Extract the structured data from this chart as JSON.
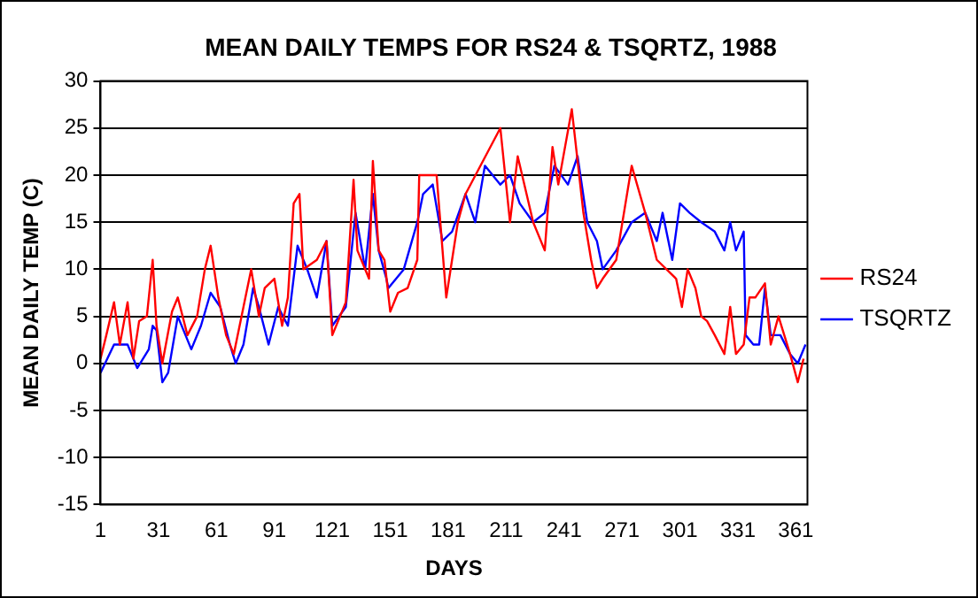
{
  "chart_data": {
    "type": "line",
    "title": "MEAN DAILY TEMPS FOR RS24 & TSQRTZ, 1988",
    "xlabel": "DAYS",
    "ylabel": "MEAN DAILY TEMP (C)",
    "xlim": [
      1,
      367
    ],
    "xticks": [
      1,
      31,
      61,
      91,
      121,
      151,
      181,
      211,
      241,
      271,
      301,
      331,
      361
    ],
    "ylim": [
      -15,
      30
    ],
    "yticks": [
      -15,
      -10,
      -5,
      0,
      5,
      10,
      15,
      20,
      25,
      30
    ],
    "grid": "y",
    "legend": "right",
    "marker": "none",
    "line_style": "solid",
    "series": [
      {
        "name": "RS24",
        "color": "#ff0000",
        "x": [
          1,
          4,
          8,
          11,
          15,
          18,
          21,
          25,
          28,
          30,
          33,
          38,
          41,
          46,
          51,
          55,
          58,
          62,
          66,
          70,
          75,
          79,
          83,
          86,
          91,
          95,
          98,
          101,
          104,
          106,
          113,
          118,
          121,
          128,
          132,
          134,
          140,
          142,
          145,
          148,
          151,
          155,
          160,
          165,
          166,
          175,
          180,
          186,
          190,
          208,
          213,
          217,
          225,
          231,
          235,
          238,
          245,
          251,
          255,
          258,
          261,
          268,
          276,
          283,
          289,
          299,
          302,
          305,
          309,
          312,
          315,
          319,
          324,
          327,
          330,
          334,
          337,
          340,
          345,
          348,
          352,
          358,
          362,
          365
        ],
        "values": [
          0.5,
          3,
          6.5,
          2,
          6.5,
          0.5,
          4.5,
          5,
          11,
          4,
          0,
          5.5,
          7,
          3,
          5,
          10,
          12.5,
          7,
          3,
          1,
          6,
          10,
          5,
          8,
          9,
          4,
          7,
          17,
          18,
          10,
          11,
          13,
          3,
          6.5,
          19.5,
          12,
          9,
          21.5,
          12,
          11,
          5.5,
          7.5,
          8,
          11,
          20,
          20,
          7,
          15,
          18,
          25,
          15,
          22,
          15,
          12,
          23,
          19,
          27,
          16,
          11,
          8,
          9,
          11,
          21,
          16,
          11,
          9,
          6,
          10,
          8,
          5,
          4.5,
          3,
          1,
          6,
          1,
          2,
          7,
          7,
          8.5,
          2,
          5,
          1,
          -2,
          0.5
        ]
      },
      {
        "name": "TSQRTZ",
        "color": "#0000ff",
        "x": [
          1,
          8,
          15,
          20,
          26,
          28,
          30,
          33,
          36,
          41,
          45,
          48,
          53,
          58,
          63,
          68,
          71,
          75,
          80,
          83,
          88,
          93,
          98,
          103,
          108,
          113,
          118,
          121,
          128,
          133,
          138,
          142,
          145,
          149,
          150,
          158,
          165,
          168,
          173,
          178,
          183,
          190,
          195,
          200,
          208,
          213,
          218,
          225,
          231,
          236,
          243,
          248,
          253,
          258,
          261,
          268,
          276,
          283,
          289,
          292,
          297,
          301,
          306,
          312,
          319,
          324,
          327,
          330,
          334,
          335,
          339,
          342,
          345,
          348,
          353,
          358,
          362,
          366
        ],
        "values": [
          -1,
          2,
          2,
          -0.5,
          1.5,
          4,
          3.5,
          -2,
          -1,
          5,
          3,
          1.5,
          4,
          7.5,
          6,
          2,
          0,
          2,
          8,
          6,
          2,
          6,
          4,
          12.5,
          10,
          7,
          13,
          4,
          6,
          16,
          10,
          18,
          12,
          9,
          8,
          10,
          15,
          18,
          19,
          13,
          14,
          18,
          15,
          21,
          19,
          20,
          17,
          15,
          16,
          21,
          19,
          22,
          15,
          13,
          10,
          12,
          15,
          16,
          13,
          16,
          11,
          17,
          16,
          15,
          14,
          12,
          15,
          12,
          14,
          3,
          2,
          2,
          8,
          3,
          3,
          1,
          0,
          2
        ]
      }
    ]
  }
}
